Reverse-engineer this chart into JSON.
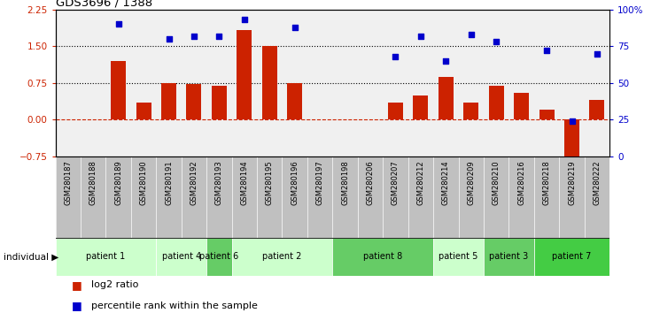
{
  "title": "GDS3696 / 1388",
  "samples": [
    "GSM280187",
    "GSM280188",
    "GSM280189",
    "GSM280190",
    "GSM280191",
    "GSM280192",
    "GSM280193",
    "GSM280194",
    "GSM280195",
    "GSM280196",
    "GSM280197",
    "GSM280198",
    "GSM280206",
    "GSM280207",
    "GSM280212",
    "GSM280214",
    "GSM280209",
    "GSM280210",
    "GSM280216",
    "GSM280218",
    "GSM280219",
    "GSM280222"
  ],
  "log2_ratio": [
    0.0,
    0.0,
    1.2,
    0.35,
    0.75,
    0.72,
    0.7,
    1.82,
    1.5,
    0.75,
    0.0,
    0.0,
    0.0,
    0.35,
    0.5,
    0.88,
    0.35,
    0.7,
    0.55,
    0.2,
    -0.85,
    0.4
  ],
  "percentile": [
    null,
    null,
    90,
    null,
    80,
    82,
    82,
    93,
    null,
    88,
    null,
    null,
    null,
    68,
    82,
    65,
    83,
    78,
    null,
    72,
    24,
    70
  ],
  "bar_color": "#cc2200",
  "dot_color": "#0000cc",
  "ylim_left": [
    -0.75,
    2.25
  ],
  "ylim_right": [
    0,
    100
  ],
  "hline_y1": 1.5,
  "hline_y2": 0.75,
  "hline_zero": 0.0,
  "dotted_color": "black",
  "zero_line_color": "#cc2200",
  "patients": [
    {
      "label": "patient 1",
      "start": 0,
      "end": 4,
      "color": "#ccffcc"
    },
    {
      "label": "patient 4",
      "start": 4,
      "end": 6,
      "color": "#ccffcc"
    },
    {
      "label": "patient 6",
      "start": 6,
      "end": 7,
      "color": "#66cc66"
    },
    {
      "label": "patient 2",
      "start": 7,
      "end": 11,
      "color": "#ccffcc"
    },
    {
      "label": "patient 8",
      "start": 11,
      "end": 15,
      "color": "#66cc66"
    },
    {
      "label": "patient 5",
      "start": 15,
      "end": 17,
      "color": "#ccffcc"
    },
    {
      "label": "patient 3",
      "start": 17,
      "end": 19,
      "color": "#66cc66"
    },
    {
      "label": "patient 7",
      "start": 19,
      "end": 22,
      "color": "#44cc44"
    }
  ],
  "left_yticks": [
    -0.75,
    0,
    0.75,
    1.5,
    2.25
  ],
  "right_yticks": [
    0,
    25,
    50,
    75,
    100
  ],
  "right_yticklabels": [
    "0",
    "25",
    "50",
    "75",
    "100%"
  ],
  "legend_bar_label": "log2 ratio",
  "legend_dot_label": "percentile rank within the sample",
  "plot_bg_color": "#f0f0f0",
  "xlabel_bg_color": "#c0c0c0"
}
